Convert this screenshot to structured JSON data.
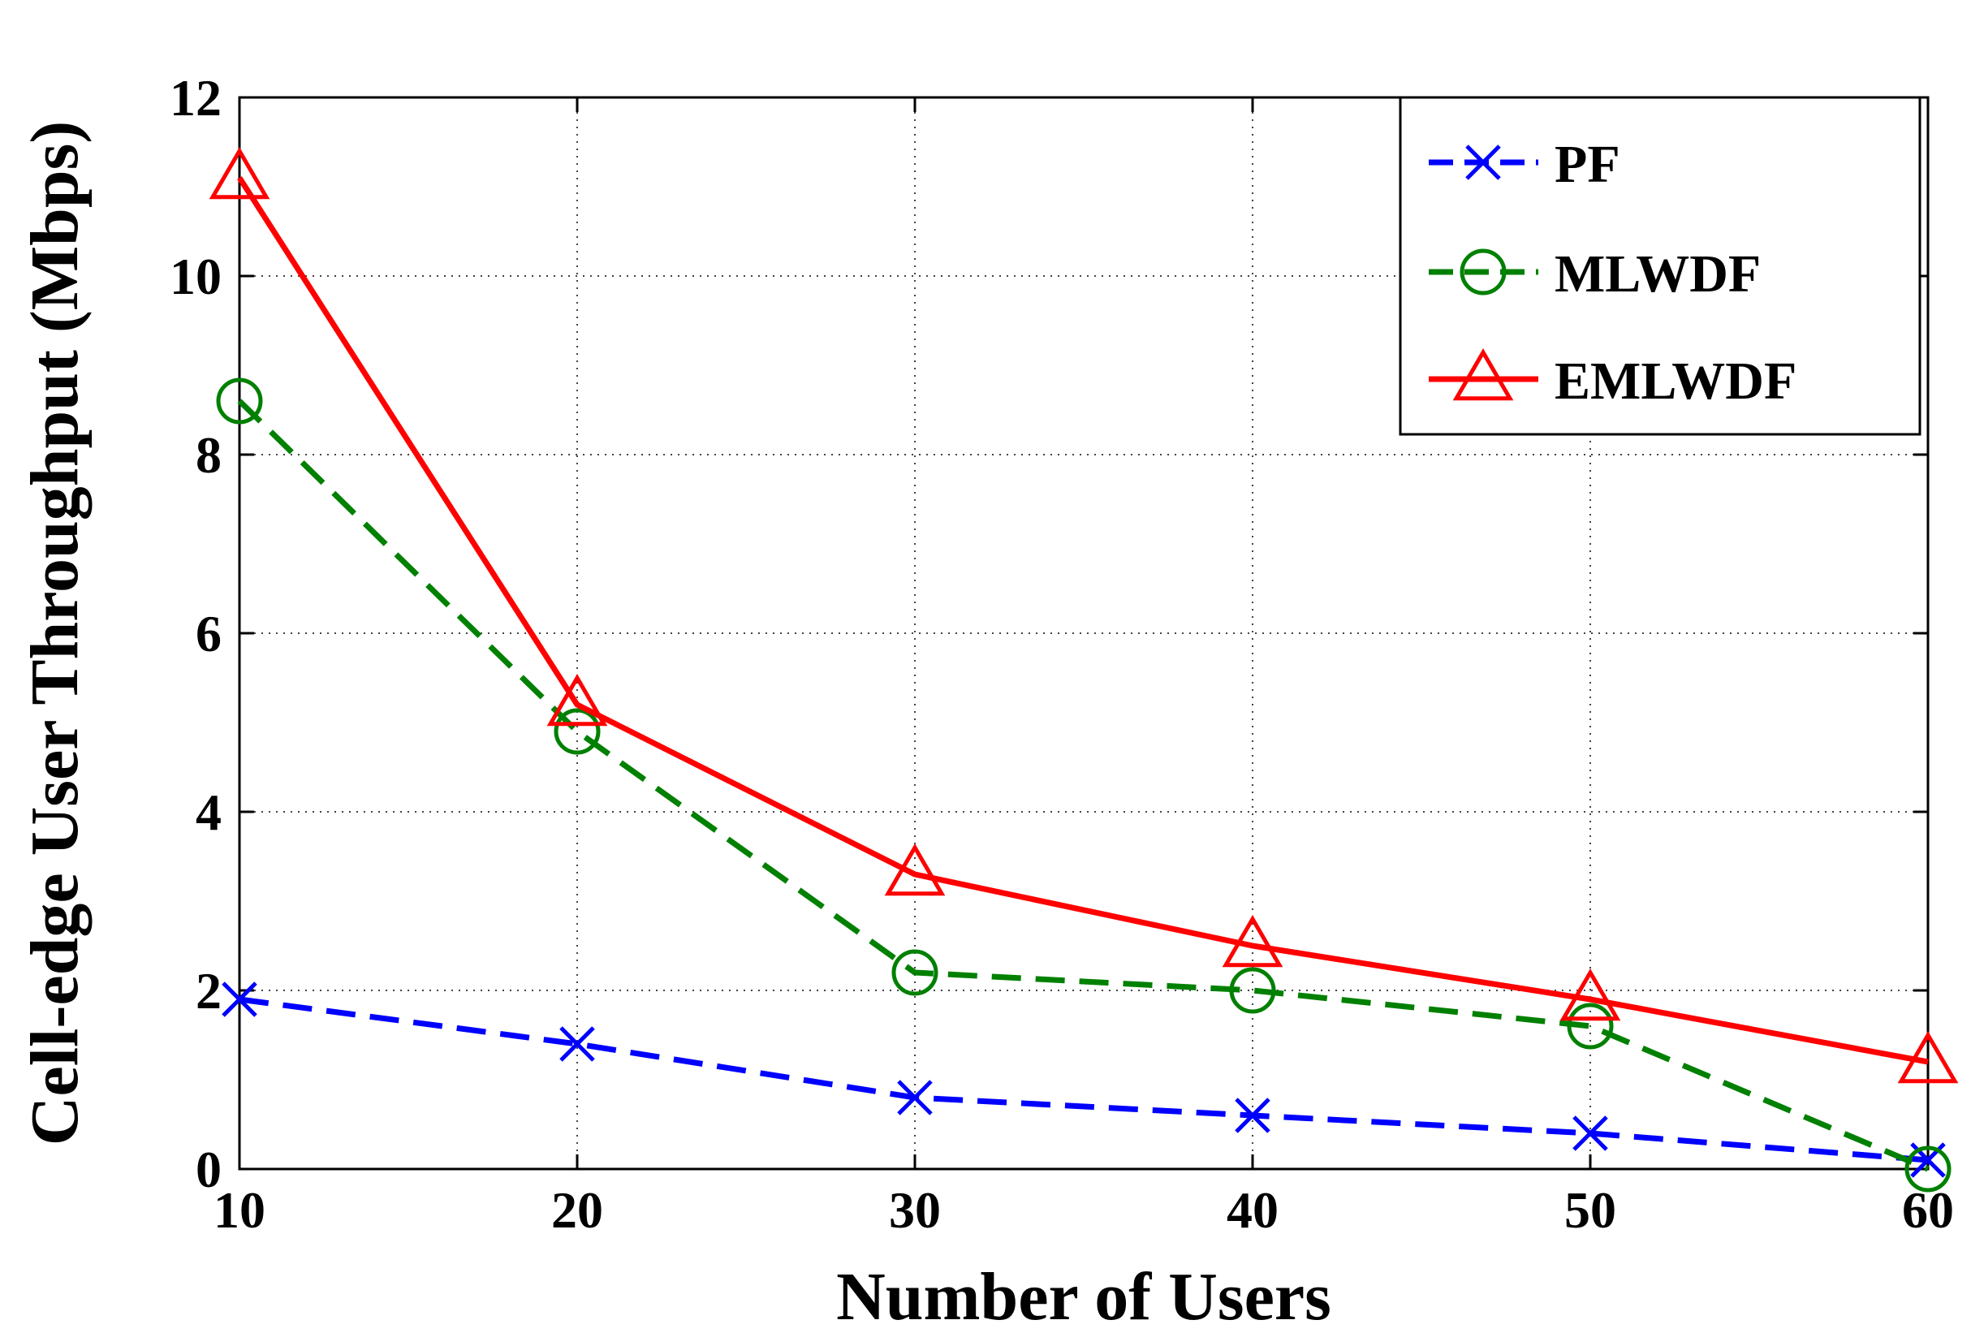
{
  "chart_data": {
    "type": "line",
    "title": "",
    "xlabel": "Number of Users",
    "ylabel": "Cell-edge User Throughput (Mbps)",
    "x": [
      10,
      20,
      30,
      40,
      50,
      60
    ],
    "xlim": [
      10,
      60
    ],
    "ylim": [
      0,
      12
    ],
    "xticks": [
      "10",
      "20",
      "30",
      "40",
      "50",
      "60"
    ],
    "yticks": [
      "0",
      "2",
      "4",
      "6",
      "8",
      "10",
      "12"
    ],
    "grid": true,
    "legend_position": "top-right",
    "series": [
      {
        "name": "PF",
        "color": "#0000ff",
        "marker": "x",
        "line": "dashed",
        "values": [
          1.9,
          1.4,
          0.8,
          0.6,
          0.4,
          0.1
        ]
      },
      {
        "name": "MLWDF",
        "color": "#008000",
        "marker": "circle",
        "line": "dashed",
        "values": [
          8.6,
          4.9,
          2.2,
          2.0,
          1.6,
          0.0
        ]
      },
      {
        "name": "EMLWDF",
        "color": "#ff0000",
        "marker": "triangle",
        "line": "solid",
        "values": [
          11.1,
          5.2,
          3.3,
          2.5,
          1.9,
          1.2
        ]
      }
    ]
  }
}
